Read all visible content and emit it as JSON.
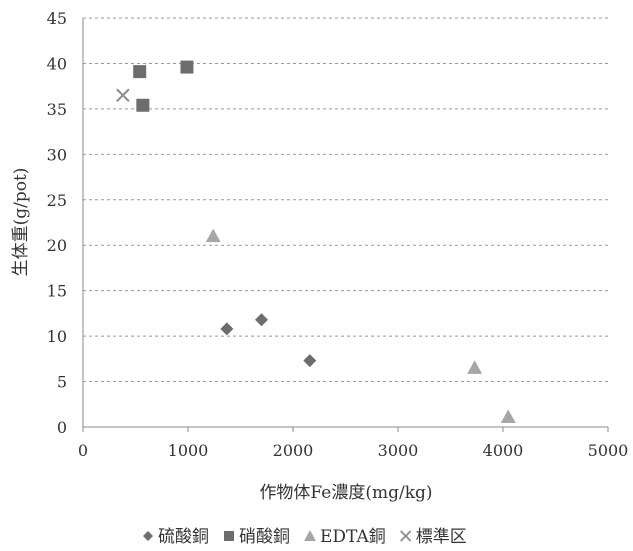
{
  "chart_data": {
    "type": "scatter",
    "xlabel": "作物体Fe濃度(mg/kg)",
    "ylabel": "生体重(g/pot)",
    "xlim": [
      0,
      5000
    ],
    "ylim": [
      0,
      45
    ],
    "xticks": [
      0,
      1000,
      2000,
      3000,
      4000,
      5000
    ],
    "yticks": [
      0,
      5,
      10,
      15,
      20,
      25,
      30,
      35,
      40,
      45
    ],
    "grid": "horizontal dashed",
    "legend_position": "bottom",
    "series": [
      {
        "name": "硫酸銅",
        "marker": "diamond",
        "color": "#6d6d6d",
        "points": [
          {
            "x": 1370,
            "y": 10.8
          },
          {
            "x": 1700,
            "y": 11.8
          },
          {
            "x": 2160,
            "y": 7.3
          }
        ]
      },
      {
        "name": "硝酸銅",
        "marker": "square",
        "color": "#6d6d6d",
        "points": [
          {
            "x": 540,
            "y": 39.1
          },
          {
            "x": 570,
            "y": 35.4
          },
          {
            "x": 990,
            "y": 39.6
          }
        ]
      },
      {
        "name": "EDTA銅",
        "marker": "triangle",
        "color": "#a6a6a6",
        "points": [
          {
            "x": 1240,
            "y": 21.0
          },
          {
            "x": 3730,
            "y": 6.5
          },
          {
            "x": 4050,
            "y": 1.1
          }
        ]
      },
      {
        "name": "標準区",
        "marker": "cross",
        "color": "#8c8c8c",
        "points": [
          {
            "x": 380,
            "y": 36.5
          }
        ]
      }
    ]
  }
}
